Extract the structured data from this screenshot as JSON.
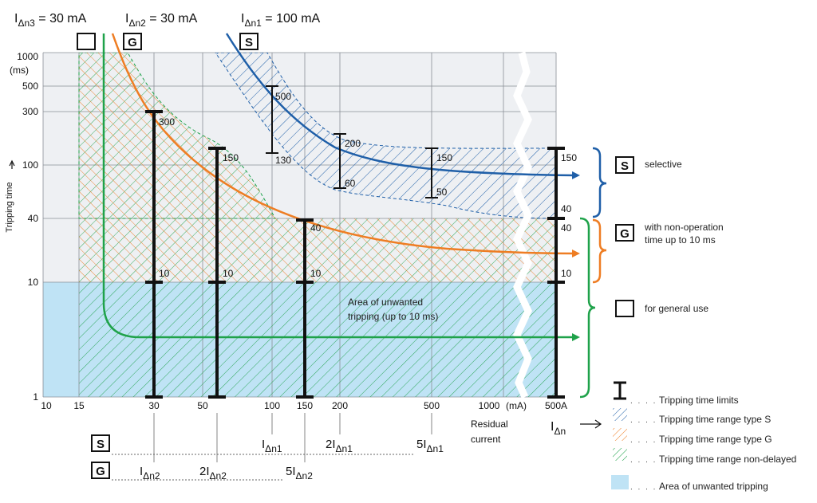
{
  "header": {
    "i3": {
      "main": "I",
      "sub": "Δn3",
      "rest": " = 30 mA"
    },
    "i2": {
      "main": "I",
      "sub": "Δn2",
      "rest": " = 30 mA"
    },
    "i1": {
      "main": "I",
      "sub": "Δn1",
      "rest": " = 100 mA"
    },
    "box_blank": "",
    "box_g": "G",
    "box_s": "S"
  },
  "y_axis": {
    "title": "Tripping time",
    "unit_top": "1000",
    "unit_ms": "(ms)",
    "ticks": [
      "1000",
      "500",
      "300",
      "100",
      "40",
      "10",
      "1"
    ]
  },
  "x_axis": {
    "ticks": [
      "10",
      "15",
      "30",
      "50",
      "100",
      "150",
      "200",
      "500",
      "1000",
      "(mA)",
      "500A"
    ],
    "residual": "Residual",
    "current": "current",
    "idn": {
      "main": "I",
      "sub": "Δn"
    }
  },
  "bars": {
    "non_delayed_1": {
      "top": "300",
      "bottom": "10"
    },
    "non_delayed_2": {
      "top": "150",
      "bottom": "10"
    },
    "non_delayed_3": {
      "top": "40",
      "bottom": "10"
    },
    "s_1": {
      "top": "500",
      "bottom": "130"
    },
    "s_2": {
      "top": "200",
      "bottom": "60"
    },
    "s_3": {
      "top": "150",
      "bottom": "50"
    },
    "right": {
      "a": "150",
      "b": "40",
      "c": "40",
      "d": "10"
    }
  },
  "unwanted_area": {
    "line1": "Area of unwanted",
    "line2": "tripping (up to 10 ms)"
  },
  "bottom_labels": {
    "s_box": "S",
    "g_box": "G",
    "s_marks": [
      {
        "pre": "",
        "main": "I",
        "sub": "Δn1"
      },
      {
        "pre": "2",
        "main": "I",
        "sub": "Δn1"
      },
      {
        "pre": "5",
        "main": "I",
        "sub": "Δn1"
      }
    ],
    "g_marks": [
      {
        "pre": "",
        "main": "I",
        "sub": "Δn2"
      },
      {
        "pre": "2",
        "main": "I",
        "sub": "Δn2"
      },
      {
        "pre": "5",
        "main": "I",
        "sub": "Δn2"
      }
    ]
  },
  "types": {
    "s": {
      "box": "S",
      "label": "selective"
    },
    "g": {
      "box": "G",
      "label1": "with non-operation",
      "label2": "time up to 10 ms"
    },
    "general": {
      "box": "",
      "label": "for general use"
    }
  },
  "legend": {
    "limits": "Tripping time limits",
    "type_s": "Tripping time range type S",
    "type_g": "Tripping time range type G",
    "non_delayed": "Tripping time range non-delayed",
    "unwanted": "Area of unwanted tripping"
  },
  "colors": {
    "blue": "#1f5fa8",
    "orange": "#ee7d23",
    "green": "#1fa24a",
    "light_blue": "#bfe3f5",
    "grid_bg": "#eef0f3"
  }
}
